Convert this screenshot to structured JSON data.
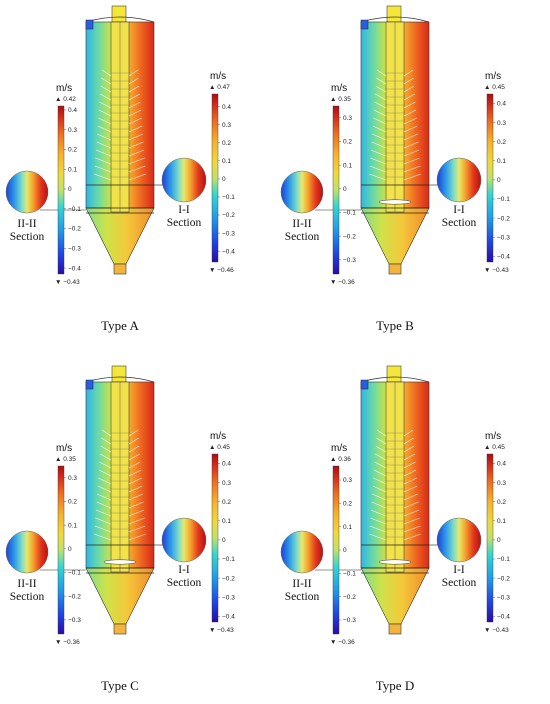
{
  "colorbar_colors": [
    "#2a0aa8",
    "#1e46e8",
    "#1f9be8",
    "#34d6d0",
    "#8fe0a0",
    "#d6e04a",
    "#f6c42a",
    "#f28a1e",
    "#e24a1a",
    "#a80f12"
  ],
  "section_labels": {
    "outer_line1": "II-II",
    "outer_line2": "Section",
    "inner_line1": "I-I",
    "inner_line2": "Section"
  },
  "panels": [
    {
      "id": "type-a",
      "caption": "Type A",
      "left_bar": {
        "unit": "m/s",
        "max_label": "0.42",
        "min_label": "−0.43",
        "ticks": [
          "0.4",
          "0.3",
          "0.2",
          "0.1",
          "0",
          "−0.1",
          "−0.2",
          "−0.3",
          "−0.4"
        ],
        "vmin": -0.43,
        "vmax": 0.42
      },
      "right_bar": {
        "unit": "m/s",
        "max_label": "0.47",
        "min_label": "−0.46",
        "ticks": [
          "0.4",
          "0.3",
          "0.2",
          "0.1",
          "0",
          "−0.1",
          "−0.2",
          "−0.3",
          "−0.4"
        ],
        "vmin": -0.46,
        "vmax": 0.47
      }
    },
    {
      "id": "type-b",
      "caption": "Type B",
      "left_bar": {
        "unit": "m/s",
        "max_label": "0.35",
        "min_label": "−0.36",
        "ticks": [
          "0.3",
          "0.2",
          "0.1",
          "0",
          "−0.1",
          "−0.2",
          "−0.3"
        ],
        "vmin": -0.36,
        "vmax": 0.35
      },
      "right_bar": {
        "unit": "m/s",
        "max_label": "0.45",
        "min_label": "−0.43",
        "ticks": [
          "0.4",
          "0.3",
          "0.2",
          "0.1",
          "0",
          "−0.1",
          "−0.2",
          "−0.3",
          "−0.4"
        ],
        "vmin": -0.43,
        "vmax": 0.45
      }
    },
    {
      "id": "type-c",
      "caption": "Type C",
      "left_bar": {
        "unit": "m/s",
        "max_label": "0.35",
        "min_label": "−0.36",
        "ticks": [
          "0.3",
          "0.2",
          "0.1",
          "0",
          "−0.1",
          "−0.2",
          "−0.3"
        ],
        "vmin": -0.36,
        "vmax": 0.35
      },
      "right_bar": {
        "unit": "m/s",
        "max_label": "0.45",
        "min_label": "−0.43",
        "ticks": [
          "0.4",
          "0.3",
          "0.2",
          "0.1",
          "0",
          "−0.1",
          "−0.2",
          "−0.3",
          "−0.4"
        ],
        "vmin": -0.43,
        "vmax": 0.45
      }
    },
    {
      "id": "type-d",
      "caption": "Type D",
      "left_bar": {
        "unit": "m/s",
        "max_label": "0.36",
        "min_label": "−0.36",
        "ticks": [
          "0.3",
          "0.2",
          "0.1",
          "0",
          "−0.1",
          "−0.2",
          "−0.3"
        ],
        "vmin": -0.36,
        "vmax": 0.36
      },
      "right_bar": {
        "unit": "m/s",
        "max_label": "0.45",
        "min_label": "−0.43",
        "ticks": [
          "0.4",
          "0.3",
          "0.2",
          "0.1",
          "0",
          "−0.1",
          "−0.2",
          "−0.3",
          "−0.4"
        ],
        "vmin": -0.43,
        "vmax": 0.45
      }
    }
  ]
}
